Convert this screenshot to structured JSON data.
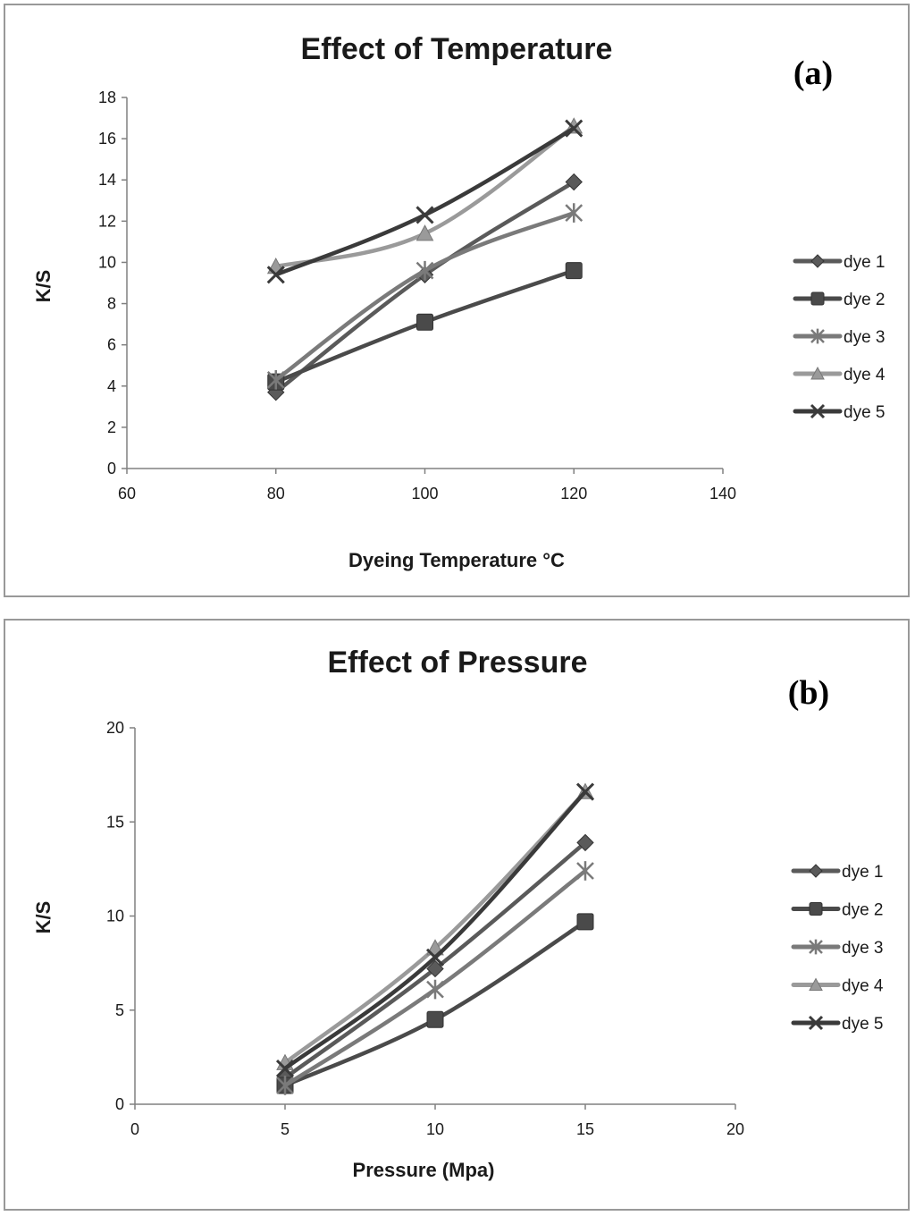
{
  "chart_data": [
    {
      "type": "line",
      "panel_label": "(a)",
      "title": "Effect of Temperature",
      "xlabel": "Dyeing Temperature °C",
      "ylabel": "K/S",
      "xlim": [
        60,
        140
      ],
      "ylim": [
        0,
        18
      ],
      "xticks": [
        60,
        80,
        100,
        120,
        140
      ],
      "yticks": [
        0,
        2,
        4,
        6,
        8,
        10,
        12,
        14,
        16,
        18
      ],
      "grid": false,
      "legend_position": "right",
      "x": [
        80,
        100,
        120
      ],
      "series": [
        {
          "name": "dye 1",
          "values": [
            3.7,
            9.4,
            13.9
          ],
          "marker": "diamond",
          "color": "#5a5a5a"
        },
        {
          "name": "dye 2",
          "values": [
            4.2,
            7.1,
            9.6
          ],
          "marker": "square",
          "color": "#4a4a4a"
        },
        {
          "name": "dye 3",
          "values": [
            4.3,
            9.6,
            12.4
          ],
          "marker": "star",
          "color": "#7a7a7a"
        },
        {
          "name": "dye 4",
          "values": [
            9.8,
            11.4,
            16.6
          ],
          "marker": "triangle",
          "color": "#9a9a9a"
        },
        {
          "name": "dye 5",
          "values": [
            9.4,
            12.3,
            16.5
          ],
          "marker": "x",
          "color": "#3a3a3a"
        }
      ]
    },
    {
      "type": "line",
      "panel_label": "(b)",
      "title": "Effect of Pressure",
      "xlabel": "Pressure (Mpa)",
      "ylabel": "K/S",
      "xlim": [
        0,
        20
      ],
      "ylim": [
        0,
        20
      ],
      "xticks": [
        0,
        5,
        10,
        15,
        20
      ],
      "yticks": [
        0,
        5,
        10,
        15,
        20
      ],
      "grid": false,
      "legend_position": "right",
      "x": [
        5,
        10,
        15
      ],
      "series": [
        {
          "name": "dye 1",
          "values": [
            1.4,
            7.2,
            13.9
          ],
          "marker": "diamond",
          "color": "#5a5a5a"
        },
        {
          "name": "dye 2",
          "values": [
            1.0,
            4.5,
            9.7
          ],
          "marker": "square",
          "color": "#4a4a4a"
        },
        {
          "name": "dye 3",
          "values": [
            1.0,
            6.1,
            12.4
          ],
          "marker": "star",
          "color": "#7a7a7a"
        },
        {
          "name": "dye 4",
          "values": [
            2.2,
            8.3,
            16.6
          ],
          "marker": "triangle",
          "color": "#9a9a9a"
        },
        {
          "name": "dye 5",
          "values": [
            1.9,
            7.8,
            16.6
          ],
          "marker": "x",
          "color": "#3a3a3a"
        }
      ]
    }
  ]
}
